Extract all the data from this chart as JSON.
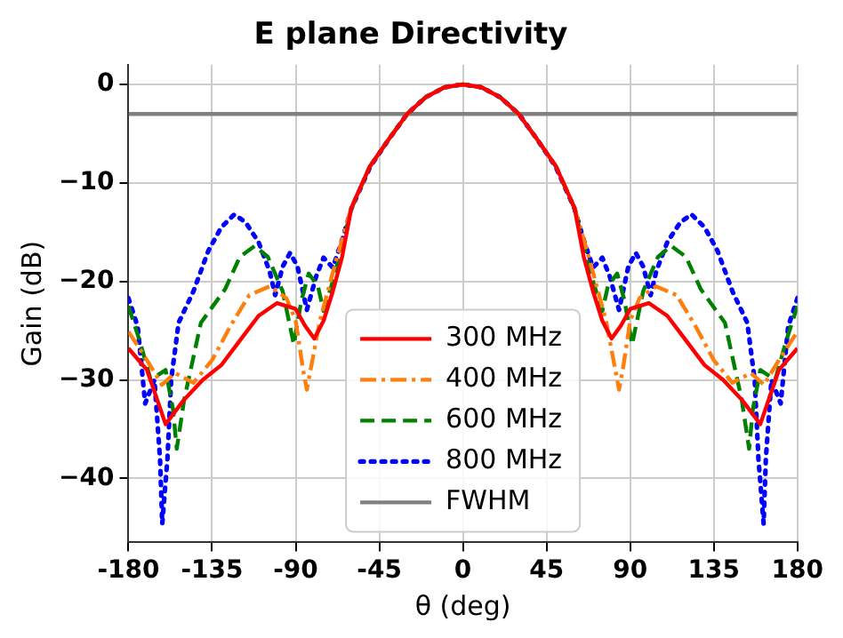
{
  "chart_data": {
    "type": "line",
    "title": "E plane Directivity",
    "xlabel": "θ (deg)",
    "ylabel": "Gain (dB)",
    "xlim": [
      -180,
      180
    ],
    "xticks": [
      -180,
      -135,
      -90,
      -45,
      0,
      45,
      90,
      135,
      180
    ],
    "ylim": [
      -46.5,
      2
    ],
    "yticks": [
      0,
      -10,
      -20,
      -30,
      -40
    ],
    "grid": true,
    "legend": "bottom",
    "marker": "none",
    "series": [
      {
        "name": "300 MHz",
        "color": "#ff0000",
        "line_style": "solid",
        "x": [
          -180,
          -170,
          -160,
          -150,
          -140,
          -130,
          -120,
          -110,
          -100,
          -90,
          -85,
          -80,
          -75,
          -70,
          -65,
          -60,
          -50,
          -40,
          -30,
          -20,
          -10,
          0,
          10,
          20,
          30,
          40,
          50,
          60,
          65,
          70,
          75,
          80,
          85,
          90,
          100,
          110,
          120,
          130,
          140,
          150,
          160,
          170,
          180
        ],
        "values": [
          -26.8,
          -29,
          -34.5,
          -32,
          -30,
          -28.5,
          -26,
          -23.5,
          -22.2,
          -22.8,
          -24.5,
          -25.8,
          -24,
          -21,
          -17.5,
          -12.5,
          -8.3,
          -5.6,
          -3,
          -1.3,
          -0.3,
          0,
          -0.3,
          -1.3,
          -3,
          -5.6,
          -8.3,
          -12.5,
          -17.5,
          -21,
          -24,
          -25.8,
          -24.5,
          -22.8,
          -22.2,
          -23.5,
          -26,
          -28.5,
          -30,
          -32,
          -34.5,
          -29,
          -26.8
        ]
      },
      {
        "name": "400 MHz",
        "color": "#ff7f0e",
        "line_style": "dashdot",
        "x": [
          -180,
          -170,
          -162,
          -155,
          -145,
          -135,
          -125,
          -115,
          -104,
          -95,
          -90,
          -86,
          -84,
          -80,
          -77,
          -72,
          -68,
          -60,
          -50,
          -40,
          -30,
          -20,
          -10,
          0,
          10,
          20,
          30,
          40,
          50,
          60,
          68,
          72,
          77,
          80,
          84,
          86,
          90,
          95,
          104,
          115,
          125,
          135,
          145,
          155,
          162,
          170,
          180
        ],
        "values": [
          -25.1,
          -28,
          -30.5,
          -29.3,
          -30.3,
          -28,
          -24.5,
          -21.4,
          -20.5,
          -21.7,
          -24,
          -29,
          -31,
          -27,
          -24,
          -20.5,
          -17.7,
          -12.5,
          -8.3,
          -5.6,
          -3,
          -1.3,
          -0.3,
          0,
          -0.3,
          -1.3,
          -3,
          -5.6,
          -8.3,
          -12.5,
          -17.7,
          -20.5,
          -24,
          -27,
          -31,
          -29,
          -24,
          -21.7,
          -20.5,
          -21.4,
          -24.5,
          -28,
          -30.3,
          -29.3,
          -30.5,
          -28,
          -25.1
        ]
      },
      {
        "name": "600 MHz",
        "color": "#008000",
        "line_style": "dashed",
        "x": [
          -180,
          -174,
          -168,
          -160,
          -156,
          -154,
          -150,
          -141,
          -128,
          -120,
          -112,
          -105,
          -97,
          -91,
          -87,
          -83,
          -78,
          -75,
          -70,
          -64.5,
          -60,
          -50,
          -40,
          -30,
          -20,
          -10,
          0,
          10,
          20,
          30,
          40,
          50,
          60,
          64.5,
          70,
          75,
          78,
          83,
          87,
          91,
          97,
          105,
          112,
          120,
          128,
          141,
          150,
          154,
          156,
          160,
          168,
          174,
          180
        ],
        "values": [
          -22.5,
          -26,
          -30,
          -29,
          -33,
          -37,
          -32,
          -24.2,
          -20.8,
          -17.5,
          -16.4,
          -17.5,
          -21,
          -26.4,
          -22,
          -19.2,
          -20.5,
          -23,
          -20,
          -16,
          -12.6,
          -8.3,
          -5.6,
          -3,
          -1.3,
          -0.3,
          0,
          -0.3,
          -1.3,
          -3,
          -5.6,
          -8.3,
          -12.6,
          -16,
          -20,
          -23,
          -20.5,
          -19.2,
          -22,
          -26.4,
          -21,
          -17.5,
          -16.4,
          -17.5,
          -20.8,
          -24.2,
          -32,
          -37,
          -33,
          -29,
          -30,
          -26,
          -22.5
        ]
      },
      {
        "name": "800 MHz",
        "color": "#0000ff",
        "line_style": "dotted",
        "x": [
          -180,
          -175,
          -171,
          -166,
          -163,
          -161.8,
          -159,
          -157,
          -153,
          -145,
          -137,
          -130,
          -123,
          -117,
          -110,
          -104,
          -101,
          -97,
          -93,
          -89,
          -84,
          -79,
          -75,
          -70,
          -65,
          -60,
          -50,
          -40,
          -30,
          -20,
          -10,
          0,
          10,
          20,
          30,
          40,
          50,
          60,
          65,
          70,
          75,
          79,
          84,
          89,
          93,
          97,
          101,
          104,
          110,
          117,
          123,
          130,
          137,
          145,
          153,
          157,
          159,
          161.8,
          163,
          166,
          171,
          175,
          180
        ],
        "values": [
          -21.7,
          -24.6,
          -32.4,
          -30,
          -38,
          -44.6,
          -38,
          -30,
          -24.2,
          -21,
          -16.9,
          -14.5,
          -13.2,
          -14,
          -16,
          -19,
          -21.4,
          -18.5,
          -17.1,
          -18.5,
          -22.9,
          -19.5,
          -17.6,
          -18.6,
          -15.8,
          -12.6,
          -8.4,
          -5.6,
          -3,
          -1.3,
          -0.3,
          0,
          -0.3,
          -1.3,
          -3,
          -5.6,
          -8.4,
          -12.6,
          -15.8,
          -18.6,
          -17.6,
          -19.5,
          -22.9,
          -18.5,
          -17.1,
          -18.5,
          -21.4,
          -19,
          -16,
          -14,
          -13.2,
          -14.5,
          -16.9,
          -21,
          -24.2,
          -30,
          -38,
          -44.6,
          -38,
          -30,
          -32.4,
          -24.6,
          -21.7
        ]
      },
      {
        "name": "FWHM",
        "color": "#808080",
        "line_style": "solid",
        "x": [
          -180,
          180
        ],
        "values": [
          -3,
          -3
        ]
      }
    ]
  }
}
